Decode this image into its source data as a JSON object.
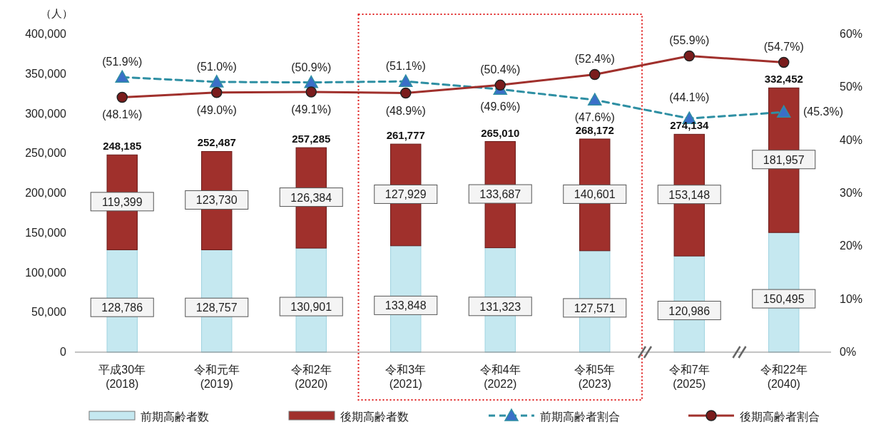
{
  "chart_data": {
    "type": "bar",
    "stacked": true,
    "ylabel": "（人）",
    "categories": [
      "平成30年\n(2018)",
      "令和元年\n(2019)",
      "令和2年\n(2020)",
      "令和3年\n(2021)",
      "令和4年\n(2022)",
      "令和5年\n(2023)",
      "令和7年\n(2025)",
      "令和22年\n(2040)"
    ],
    "series": [
      {
        "name": "前期高齢者数",
        "color": "#c5e8f0",
        "values": [
          128786,
          128757,
          130901,
          133848,
          131323,
          127571,
          120986,
          150495
        ],
        "value_labels": [
          "128,786",
          "128,757",
          "130,901",
          "133,848",
          "131,323",
          "127,571",
          "120,986",
          "150,495"
        ]
      },
      {
        "name": "後期高齢者数",
        "color": "#a0302c",
        "values": [
          119399,
          123730,
          126384,
          127929,
          133687,
          140601,
          153148,
          181957
        ],
        "value_labels": [
          "119,399",
          "123,730",
          "126,384",
          "127,929",
          "133,687",
          "140,601",
          "153,148",
          "181,957"
        ]
      },
      {
        "name": "前期高齢者割合",
        "type": "line",
        "axis": "y2",
        "color": "#2e8fa3",
        "line_style": "dashed",
        "marker": "triangle",
        "values": [
          51.9,
          51.0,
          50.9,
          51.1,
          49.6,
          47.6,
          44.1,
          45.3
        ],
        "value_labels": [
          "(51.9%)",
          "(51.0%)",
          "(50.9%)",
          "(51.1%)",
          "(49.6%)",
          "(47.6%)",
          "(44.1%)",
          "(45.3%)"
        ]
      },
      {
        "name": "後期高齢者割合",
        "type": "line",
        "axis": "y2",
        "color": "#a0302c",
        "line_style": "solid",
        "marker": "circle",
        "values": [
          48.1,
          49.0,
          49.1,
          48.9,
          50.4,
          52.4,
          55.9,
          54.7
        ],
        "value_labels": [
          "(48.1%)",
          "(49.0%)",
          "(49.1%)",
          "(48.9%)",
          "(50.4%)",
          "(52.4%)",
          "(55.9%)",
          "(54.7%)"
        ]
      }
    ],
    "totals": [
      "248,185",
      "252,487",
      "257,285",
      "261,777",
      "265,010",
      "268,172",
      "274,134",
      "332,452"
    ],
    "ylim": [
      0,
      400000
    ],
    "yticks": [
      {
        "value": 0,
        "label": "0"
      },
      {
        "value": 50000,
        "label": "50,000"
      },
      {
        "value": 100000,
        "label": "100,000"
      },
      {
        "value": 150000,
        "label": "150,000"
      },
      {
        "value": 200000,
        "label": "200,000"
      },
      {
        "value": 250000,
        "label": "250,000"
      },
      {
        "value": 300000,
        "label": "300,000"
      },
      {
        "value": 350000,
        "label": "350,000"
      },
      {
        "value": 400000,
        "label": "400,000"
      }
    ],
    "y2lim": [
      0,
      60
    ],
    "y2ticks": [
      {
        "value": 0,
        "label": "0%"
      },
      {
        "value": 10,
        "label": "10%"
      },
      {
        "value": 20,
        "label": "20%"
      },
      {
        "value": 30,
        "label": "30%"
      },
      {
        "value": 40,
        "label": "40%"
      },
      {
        "value": 50,
        "label": "50%"
      },
      {
        "value": 60,
        "label": "60%"
      }
    ],
    "grid": false,
    "legend": "bottom"
  }
}
